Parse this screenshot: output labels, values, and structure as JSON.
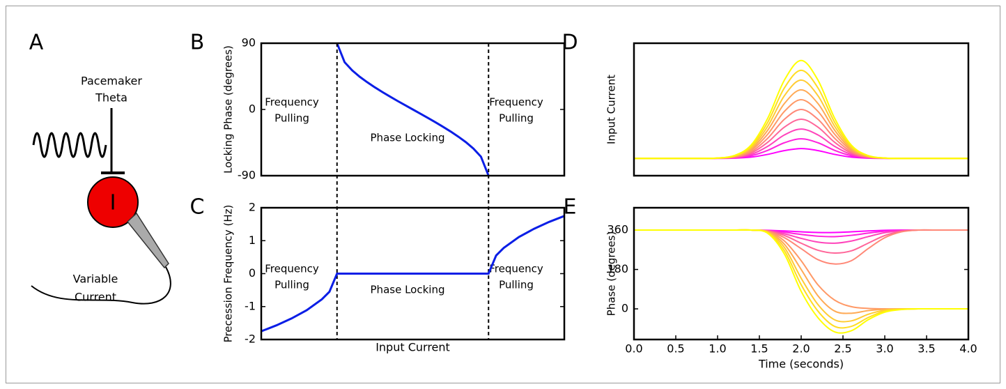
{
  "figure": {
    "panel_a": {
      "letter": "A",
      "top_label": [
        "Pacemaker",
        "Theta"
      ],
      "neuron_label": "I",
      "bottom_label": [
        "Variable",
        "Current"
      ]
    }
  },
  "chart_data": [
    {
      "letter": "B",
      "type": "line",
      "ylabel": "Locking Phase (degrees)",
      "xlim": [
        0,
        1
      ],
      "ylim": [
        -90,
        90
      ],
      "yticks": [
        -90,
        0,
        90
      ],
      "vlines": [
        0.25,
        0.75
      ],
      "annotations": [
        {
          "lines": [
            "Frequency",
            "Pulling"
          ]
        },
        {
          "lines": [
            "Phase Locking"
          ]
        },
        {
          "lines": [
            "Frequency",
            "Pulling"
          ]
        }
      ],
      "x": [
        0.25,
        0.275,
        0.3,
        0.325,
        0.35,
        0.375,
        0.4,
        0.425,
        0.45,
        0.475,
        0.5,
        0.525,
        0.55,
        0.575,
        0.6,
        0.625,
        0.65,
        0.675,
        0.7,
        0.725,
        0.75
      ],
      "series": [
        {
          "color": "#0a1ee6",
          "values": [
            90,
            64.2,
            53.1,
            44.4,
            36.9,
            30,
            23.6,
            17.5,
            11.5,
            5.7,
            0,
            -5.7,
            -11.5,
            -17.5,
            -23.6,
            -30,
            -36.9,
            -44.4,
            -53.1,
            -64.2,
            -90
          ]
        }
      ]
    },
    {
      "letter": "C",
      "type": "line",
      "ylabel": "Precession Frequency (Hz)",
      "xlabel": "Input Current",
      "xlim": [
        0,
        1
      ],
      "ylim": [
        -2,
        2
      ],
      "yticks": [
        -2,
        -1,
        0,
        1,
        2
      ],
      "annotations": [
        {
          "lines": [
            "Frequency",
            "Pulling"
          ]
        },
        {
          "lines": [
            "Phase Locking"
          ]
        },
        {
          "lines": [
            "Frequency",
            "Pulling"
          ]
        }
      ],
      "x": [
        0,
        0.05,
        0.1,
        0.15,
        0.2,
        0.225,
        0.25,
        0.75,
        0.775,
        0.8,
        0.85,
        0.9,
        0.95,
        1
      ],
      "series": [
        {
          "color": "#0a1ee6",
          "values": [
            -1.75,
            -1.57,
            -1.36,
            -1.11,
            -0.78,
            -0.55,
            0,
            0,
            0.55,
            0.78,
            1.11,
            1.36,
            1.57,
            1.75
          ]
        }
      ]
    },
    {
      "letter": "D",
      "type": "line",
      "ylabel": "Input Current",
      "xlim": [
        0,
        4
      ],
      "ylim": [
        -0.15,
        1.0
      ],
      "x": [
        0,
        0.2,
        0.4,
        0.6,
        0.8,
        1.0,
        1.2,
        1.4,
        1.6,
        1.8,
        2.0,
        2.2,
        2.4,
        2.6,
        2.8,
        3.0,
        3.2,
        3.4,
        3.6,
        3.8,
        4.0
      ],
      "series": [
        {
          "color": "#ff00ff",
          "values": [
            0,
            0,
            0,
            0,
            0,
            0,
            0.002,
            0.011,
            0.035,
            0.068,
            0.085,
            0.068,
            0.035,
            0.011,
            0.002,
            0,
            0,
            0,
            0,
            0,
            0
          ]
        },
        {
          "color": "#ff22dd",
          "values": [
            0,
            0,
            0,
            0,
            0,
            0.001,
            0.005,
            0.023,
            0.07,
            0.136,
            0.17,
            0.136,
            0.07,
            0.023,
            0.005,
            0.001,
            0,
            0,
            0,
            0,
            0
          ]
        },
        {
          "color": "#ff44bb",
          "values": [
            0,
            0,
            0,
            0,
            0,
            0.001,
            0.007,
            0.034,
            0.105,
            0.204,
            0.255,
            0.204,
            0.105,
            0.034,
            0.007,
            0.001,
            0,
            0,
            0,
            0,
            0
          ]
        },
        {
          "color": "#ff6699",
          "values": [
            0,
            0,
            0,
            0,
            0,
            0.001,
            0.01,
            0.046,
            0.14,
            0.272,
            0.34,
            0.272,
            0.14,
            0.046,
            0.01,
            0.001,
            0,
            0,
            0,
            0,
            0
          ]
        },
        {
          "color": "#ff8877",
          "values": [
            0,
            0,
            0,
            0,
            0,
            0.002,
            0.012,
            0.057,
            0.175,
            0.34,
            0.425,
            0.34,
            0.175,
            0.057,
            0.012,
            0.002,
            0,
            0,
            0,
            0,
            0
          ]
        },
        {
          "color": "#ff9966",
          "values": [
            0,
            0,
            0,
            0,
            0,
            0.002,
            0.015,
            0.069,
            0.21,
            0.409,
            0.51,
            0.409,
            0.21,
            0.069,
            0.015,
            0.002,
            0,
            0,
            0,
            0,
            0
          ]
        },
        {
          "color": "#ffaa55",
          "values": [
            0,
            0,
            0,
            0,
            0,
            0.002,
            0.017,
            0.08,
            0.245,
            0.477,
            0.595,
            0.477,
            0.245,
            0.08,
            0.017,
            0.002,
            0,
            0,
            0,
            0,
            0
          ]
        },
        {
          "color": "#ffcc33",
          "values": [
            0,
            0,
            0,
            0,
            0,
            0.003,
            0.02,
            0.092,
            0.279,
            0.545,
            0.68,
            0.545,
            0.279,
            0.092,
            0.02,
            0.003,
            0,
            0,
            0,
            0,
            0
          ]
        },
        {
          "color": "#ffdd22",
          "values": [
            0,
            0,
            0,
            0,
            0,
            0.003,
            0.022,
            0.103,
            0.314,
            0.613,
            0.765,
            0.613,
            0.314,
            0.103,
            0.022,
            0.003,
            0,
            0,
            0,
            0,
            0
          ]
        },
        {
          "color": "#ffff00",
          "values": [
            0,
            0,
            0,
            0,
            0,
            0.003,
            0.025,
            0.115,
            0.349,
            0.681,
            0.85,
            0.681,
            0.349,
            0.115,
            0.025,
            0.003,
            0,
            0,
            0,
            0,
            0
          ]
        }
      ]
    },
    {
      "letter": "E",
      "type": "line",
      "ylabel": "Phase (degrees)",
      "xlabel": "Time (seconds)",
      "xlim": [
        0,
        4
      ],
      "ylim": [
        -140,
        462
      ],
      "yticks": [
        0,
        180,
        360
      ],
      "xticks": [
        {
          "value": 0,
          "label": "0.0"
        },
        0.5,
        {
          "value": 1,
          "label": "1.0"
        },
        1.5,
        {
          "value": 2,
          "label": "2.0"
        },
        2.5,
        {
          "value": 3,
          "label": "3.0"
        },
        3.5,
        {
          "value": 4,
          "label": "4.0"
        }
      ],
      "x": [
        0,
        0.2,
        0.4,
        0.6,
        0.8,
        1.0,
        1.2,
        1.4,
        1.6,
        1.8,
        2.0,
        2.2,
        2.4,
        2.6,
        2.8,
        3.0,
        3.2,
        3.4,
        3.6,
        3.8,
        4.0
      ],
      "series": [
        {
          "color": "#ff00ff",
          "values": [
            360,
            360,
            360,
            360,
            360,
            360,
            360,
            360,
            359,
            356,
            352,
            349,
            349,
            352,
            356,
            359,
            360,
            360,
            360,
            360,
            360
          ]
        },
        {
          "color": "#ff22dd",
          "values": [
            360,
            360,
            360,
            360,
            360,
            360,
            360,
            360,
            358,
            350,
            340,
            332,
            330,
            336,
            346,
            355,
            359,
            360,
            360,
            360,
            360
          ]
        },
        {
          "color": "#ff44bb",
          "values": [
            360,
            360,
            360,
            360,
            360,
            360,
            360,
            360,
            357,
            343,
            322,
            305,
            300,
            310,
            330,
            348,
            357,
            360,
            360,
            360,
            360
          ]
        },
        {
          "color": "#ff6699",
          "values": [
            360,
            360,
            360,
            360,
            360,
            360,
            360,
            360,
            356,
            335,
            300,
            268,
            255,
            265,
            300,
            335,
            354,
            360,
            360,
            360,
            360
          ]
        },
        {
          "color": "#ff8877",
          "values": [
            360,
            360,
            360,
            360,
            360,
            360,
            360,
            360,
            355,
            325,
            275,
            225,
            205,
            220,
            275,
            325,
            352,
            360,
            360,
            360,
            360
          ]
        },
        {
          "color": "#ff9966",
          "values": [
            360,
            360,
            360,
            360,
            360,
            360,
            360,
            360,
            354,
            310,
            220,
            110,
            40,
            10,
            2,
            0,
            0,
            0,
            0,
            0,
            0
          ]
        },
        {
          "color": "#ffaa55",
          "values": [
            360,
            360,
            360,
            360,
            360,
            360,
            360,
            360,
            352,
            295,
            180,
            60,
            -10,
            -20,
            -8,
            -2,
            0,
            0,
            0,
            0,
            0
          ]
        },
        {
          "color": "#ffcc33",
          "values": [
            360,
            360,
            360,
            360,
            360,
            360,
            360,
            360,
            350,
            280,
            140,
            20,
            -50,
            -55,
            -25,
            -6,
            -1,
            0,
            0,
            0,
            0
          ]
        },
        {
          "color": "#ffdd22",
          "values": [
            360,
            360,
            360,
            360,
            360,
            360,
            360,
            360,
            348,
            265,
            110,
            -10,
            -80,
            -80,
            -40,
            -10,
            -2,
            0,
            0,
            0,
            0
          ]
        },
        {
          "color": "#ffff00",
          "values": [
            360,
            360,
            360,
            360,
            360,
            360,
            360,
            360,
            345,
            250,
            80,
            -40,
            -105,
            -100,
            -50,
            -15,
            -3,
            0,
            0,
            0,
            0
          ]
        }
      ]
    }
  ]
}
